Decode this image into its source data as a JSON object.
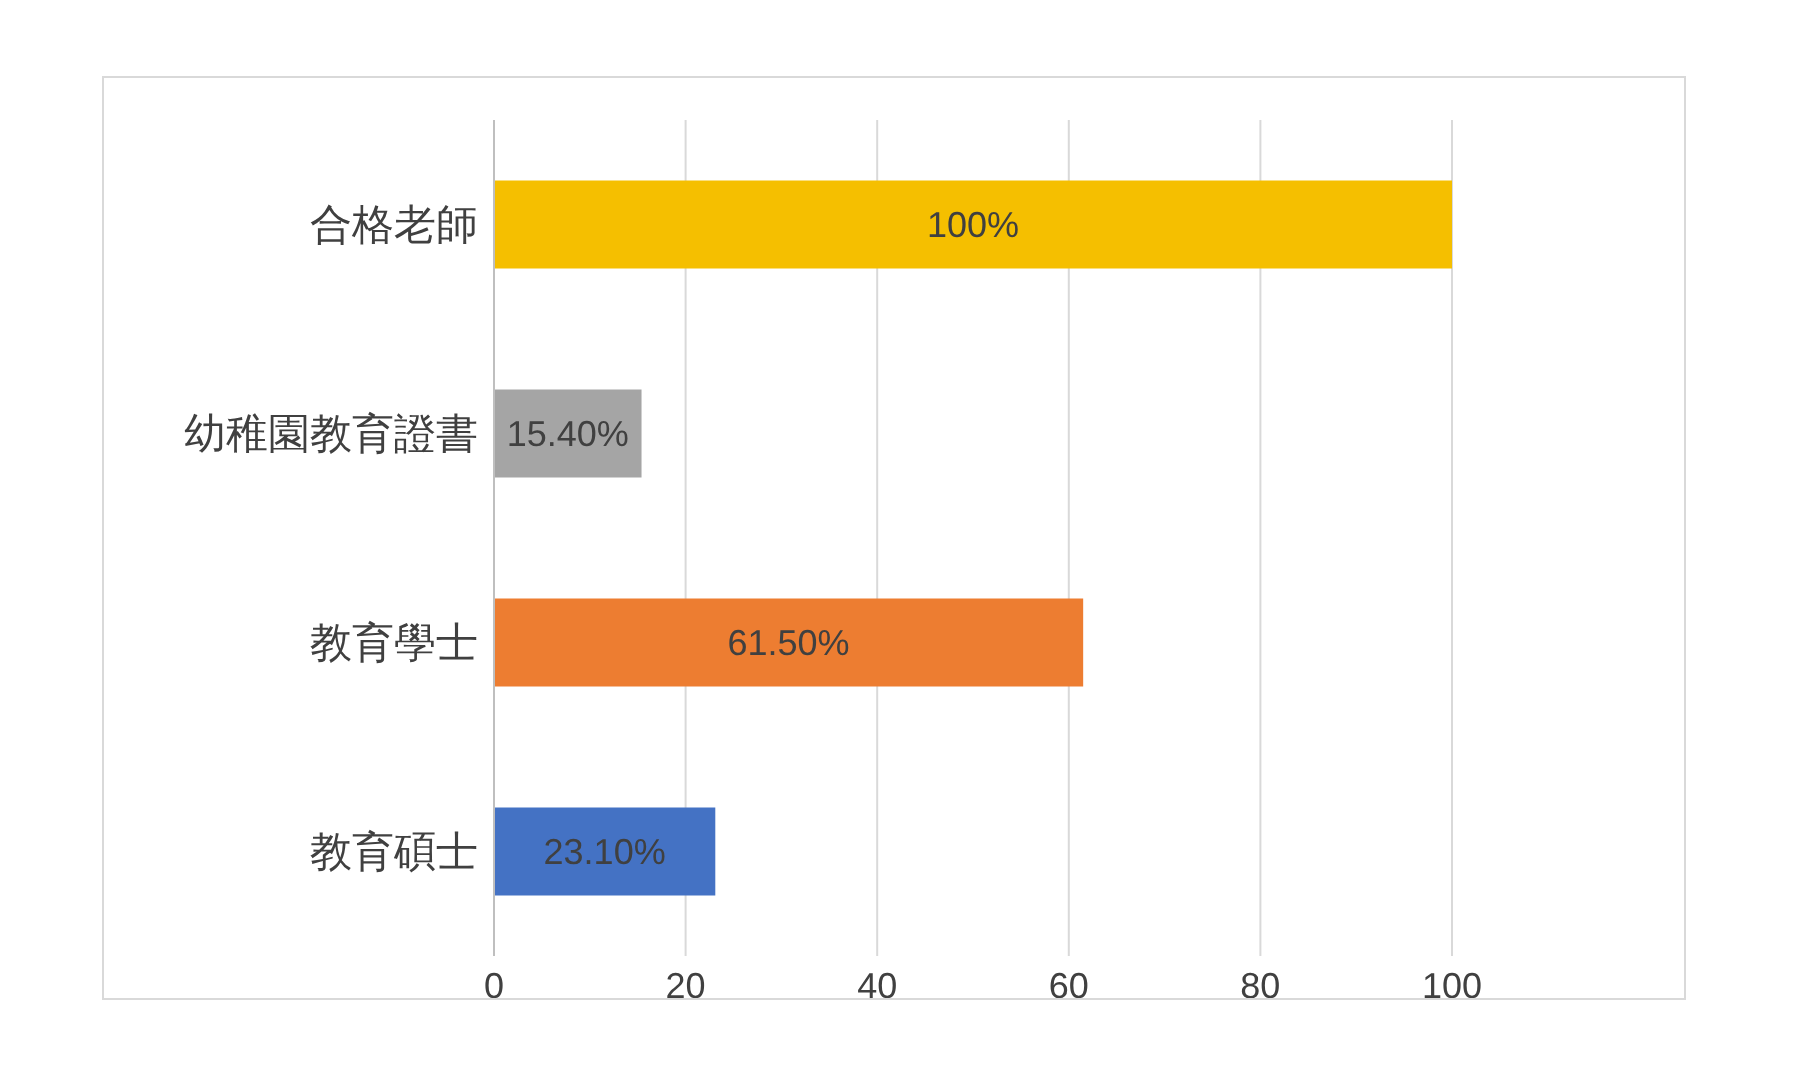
{
  "chart_data": {
    "type": "bar",
    "orientation": "horizontal",
    "categories": [
      "合格老師",
      "幼稚園教育證書",
      "教育學士",
      "教育碩士"
    ],
    "values": [
      100,
      15.4,
      61.5,
      23.1
    ],
    "colors": [
      "#f5bf00",
      "#a5a5a5",
      "#ed7d31",
      "#4472c4"
    ],
    "value_labels": [
      "100%",
      "15.40%",
      "61.50%",
      "23.10%"
    ],
    "xlim": [
      0,
      100
    ],
    "xticks": [
      0,
      20,
      40,
      60,
      80,
      100
    ],
    "grid": "x"
  }
}
